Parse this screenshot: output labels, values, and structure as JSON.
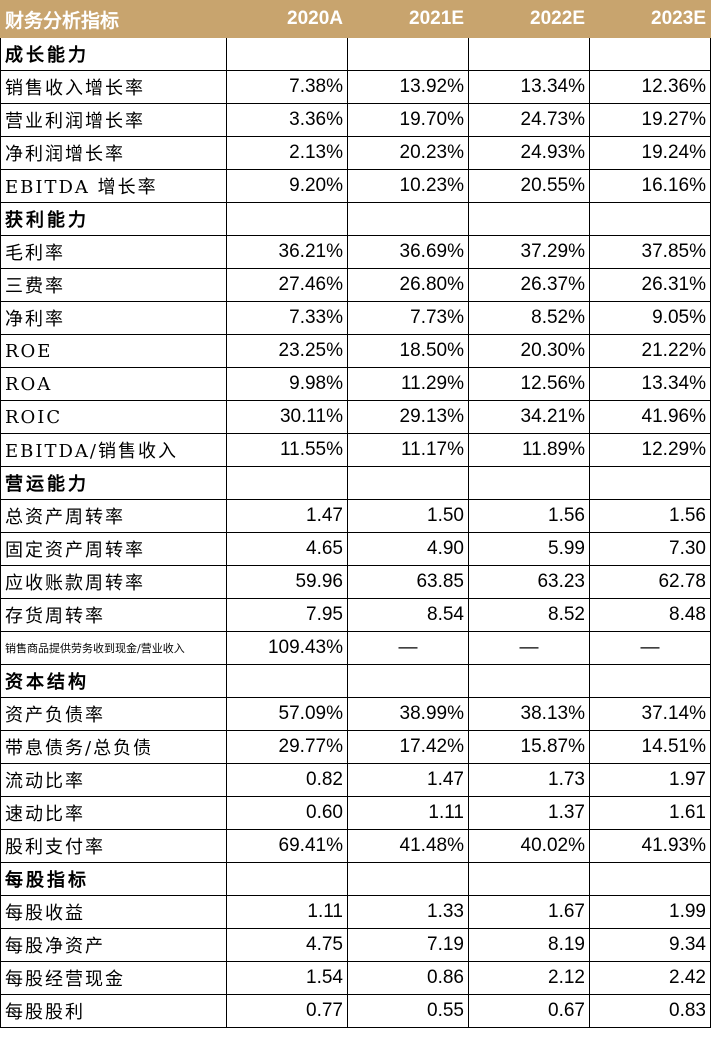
{
  "header": [
    "财务分析指标",
    "2020A",
    "2021E",
    "2022E",
    "2023E"
  ],
  "rows": [
    {
      "type": "section",
      "label": "成长能力"
    },
    {
      "type": "data",
      "label": "销售收入增长率",
      "values": [
        "7.38%",
        "13.92%",
        "13.34%",
        "12.36%"
      ]
    },
    {
      "type": "data",
      "label": "营业利润增长率",
      "values": [
        "3.36%",
        "19.70%",
        "24.73%",
        "19.27%"
      ]
    },
    {
      "type": "data",
      "label": "净利润增长率",
      "values": [
        "2.13%",
        "20.23%",
        "24.93%",
        "19.24%"
      ]
    },
    {
      "type": "data",
      "label": "EBITDA 增长率",
      "values": [
        "9.20%",
        "10.23%",
        "20.55%",
        "16.16%"
      ]
    },
    {
      "type": "section",
      "label": "获利能力"
    },
    {
      "type": "data",
      "label": "毛利率",
      "values": [
        "36.21%",
        "36.69%",
        "37.29%",
        "37.85%"
      ]
    },
    {
      "type": "data",
      "label": "三费率",
      "values": [
        "27.46%",
        "26.80%",
        "26.37%",
        "26.31%"
      ]
    },
    {
      "type": "data",
      "label": "净利率",
      "values": [
        "7.33%",
        "7.73%",
        "8.52%",
        "9.05%"
      ]
    },
    {
      "type": "data",
      "label": "ROE",
      "values": [
        "23.25%",
        "18.50%",
        "20.30%",
        "21.22%"
      ]
    },
    {
      "type": "data",
      "label": "ROA",
      "values": [
        "9.98%",
        "11.29%",
        "12.56%",
        "13.34%"
      ]
    },
    {
      "type": "data",
      "label": "ROIC",
      "values": [
        "30.11%",
        "29.13%",
        "34.21%",
        "41.96%"
      ]
    },
    {
      "type": "data",
      "label": "EBITDA/销售收入",
      "values": [
        "11.55%",
        "11.17%",
        "11.89%",
        "12.29%"
      ]
    },
    {
      "type": "section",
      "label": "营运能力"
    },
    {
      "type": "data",
      "label": "总资产周转率",
      "values": [
        "1.47",
        "1.50",
        "1.56",
        "1.56"
      ]
    },
    {
      "type": "data",
      "label": "固定资产周转率",
      "values": [
        "4.65",
        "4.90",
        "5.99",
        "7.30"
      ]
    },
    {
      "type": "data",
      "label": "应收账款周转率",
      "values": [
        "59.96",
        "63.85",
        "63.23",
        "62.78"
      ]
    },
    {
      "type": "data",
      "label": "存货周转率",
      "values": [
        "7.95",
        "8.54",
        "8.52",
        "8.48"
      ]
    },
    {
      "type": "data",
      "label": "销售商品提供劳务收到现金/营业收入",
      "small": true,
      "values": [
        "109.43%",
        "—",
        "—",
        "—"
      ]
    },
    {
      "type": "section",
      "label": "资本结构"
    },
    {
      "type": "data",
      "label": "资产负债率",
      "values": [
        "57.09%",
        "38.99%",
        "38.13%",
        "37.14%"
      ]
    },
    {
      "type": "data",
      "label": "带息债务/总负债",
      "values": [
        "29.77%",
        "17.42%",
        "15.87%",
        "14.51%"
      ]
    },
    {
      "type": "data",
      "label": "流动比率",
      "values": [
        "0.82",
        "1.47",
        "1.73",
        "1.97"
      ]
    },
    {
      "type": "data",
      "label": "速动比率",
      "values": [
        "0.60",
        "1.11",
        "1.37",
        "1.61"
      ]
    },
    {
      "type": "data",
      "label": "股利支付率",
      "values": [
        "69.41%",
        "41.48%",
        "40.02%",
        "41.93%"
      ]
    },
    {
      "type": "section",
      "label": "每股指标"
    },
    {
      "type": "data",
      "label": "每股收益",
      "values": [
        "1.11",
        "1.33",
        "1.67",
        "1.99"
      ]
    },
    {
      "type": "data",
      "label": "每股净资产",
      "values": [
        "4.75",
        "7.19",
        "8.19",
        "9.34"
      ]
    },
    {
      "type": "data",
      "label": "每股经营现金",
      "values": [
        "1.54",
        "0.86",
        "2.12",
        "2.42"
      ]
    },
    {
      "type": "data",
      "label": "每股股利",
      "values": [
        "0.77",
        "0.55",
        "0.67",
        "0.83"
      ]
    }
  ]
}
